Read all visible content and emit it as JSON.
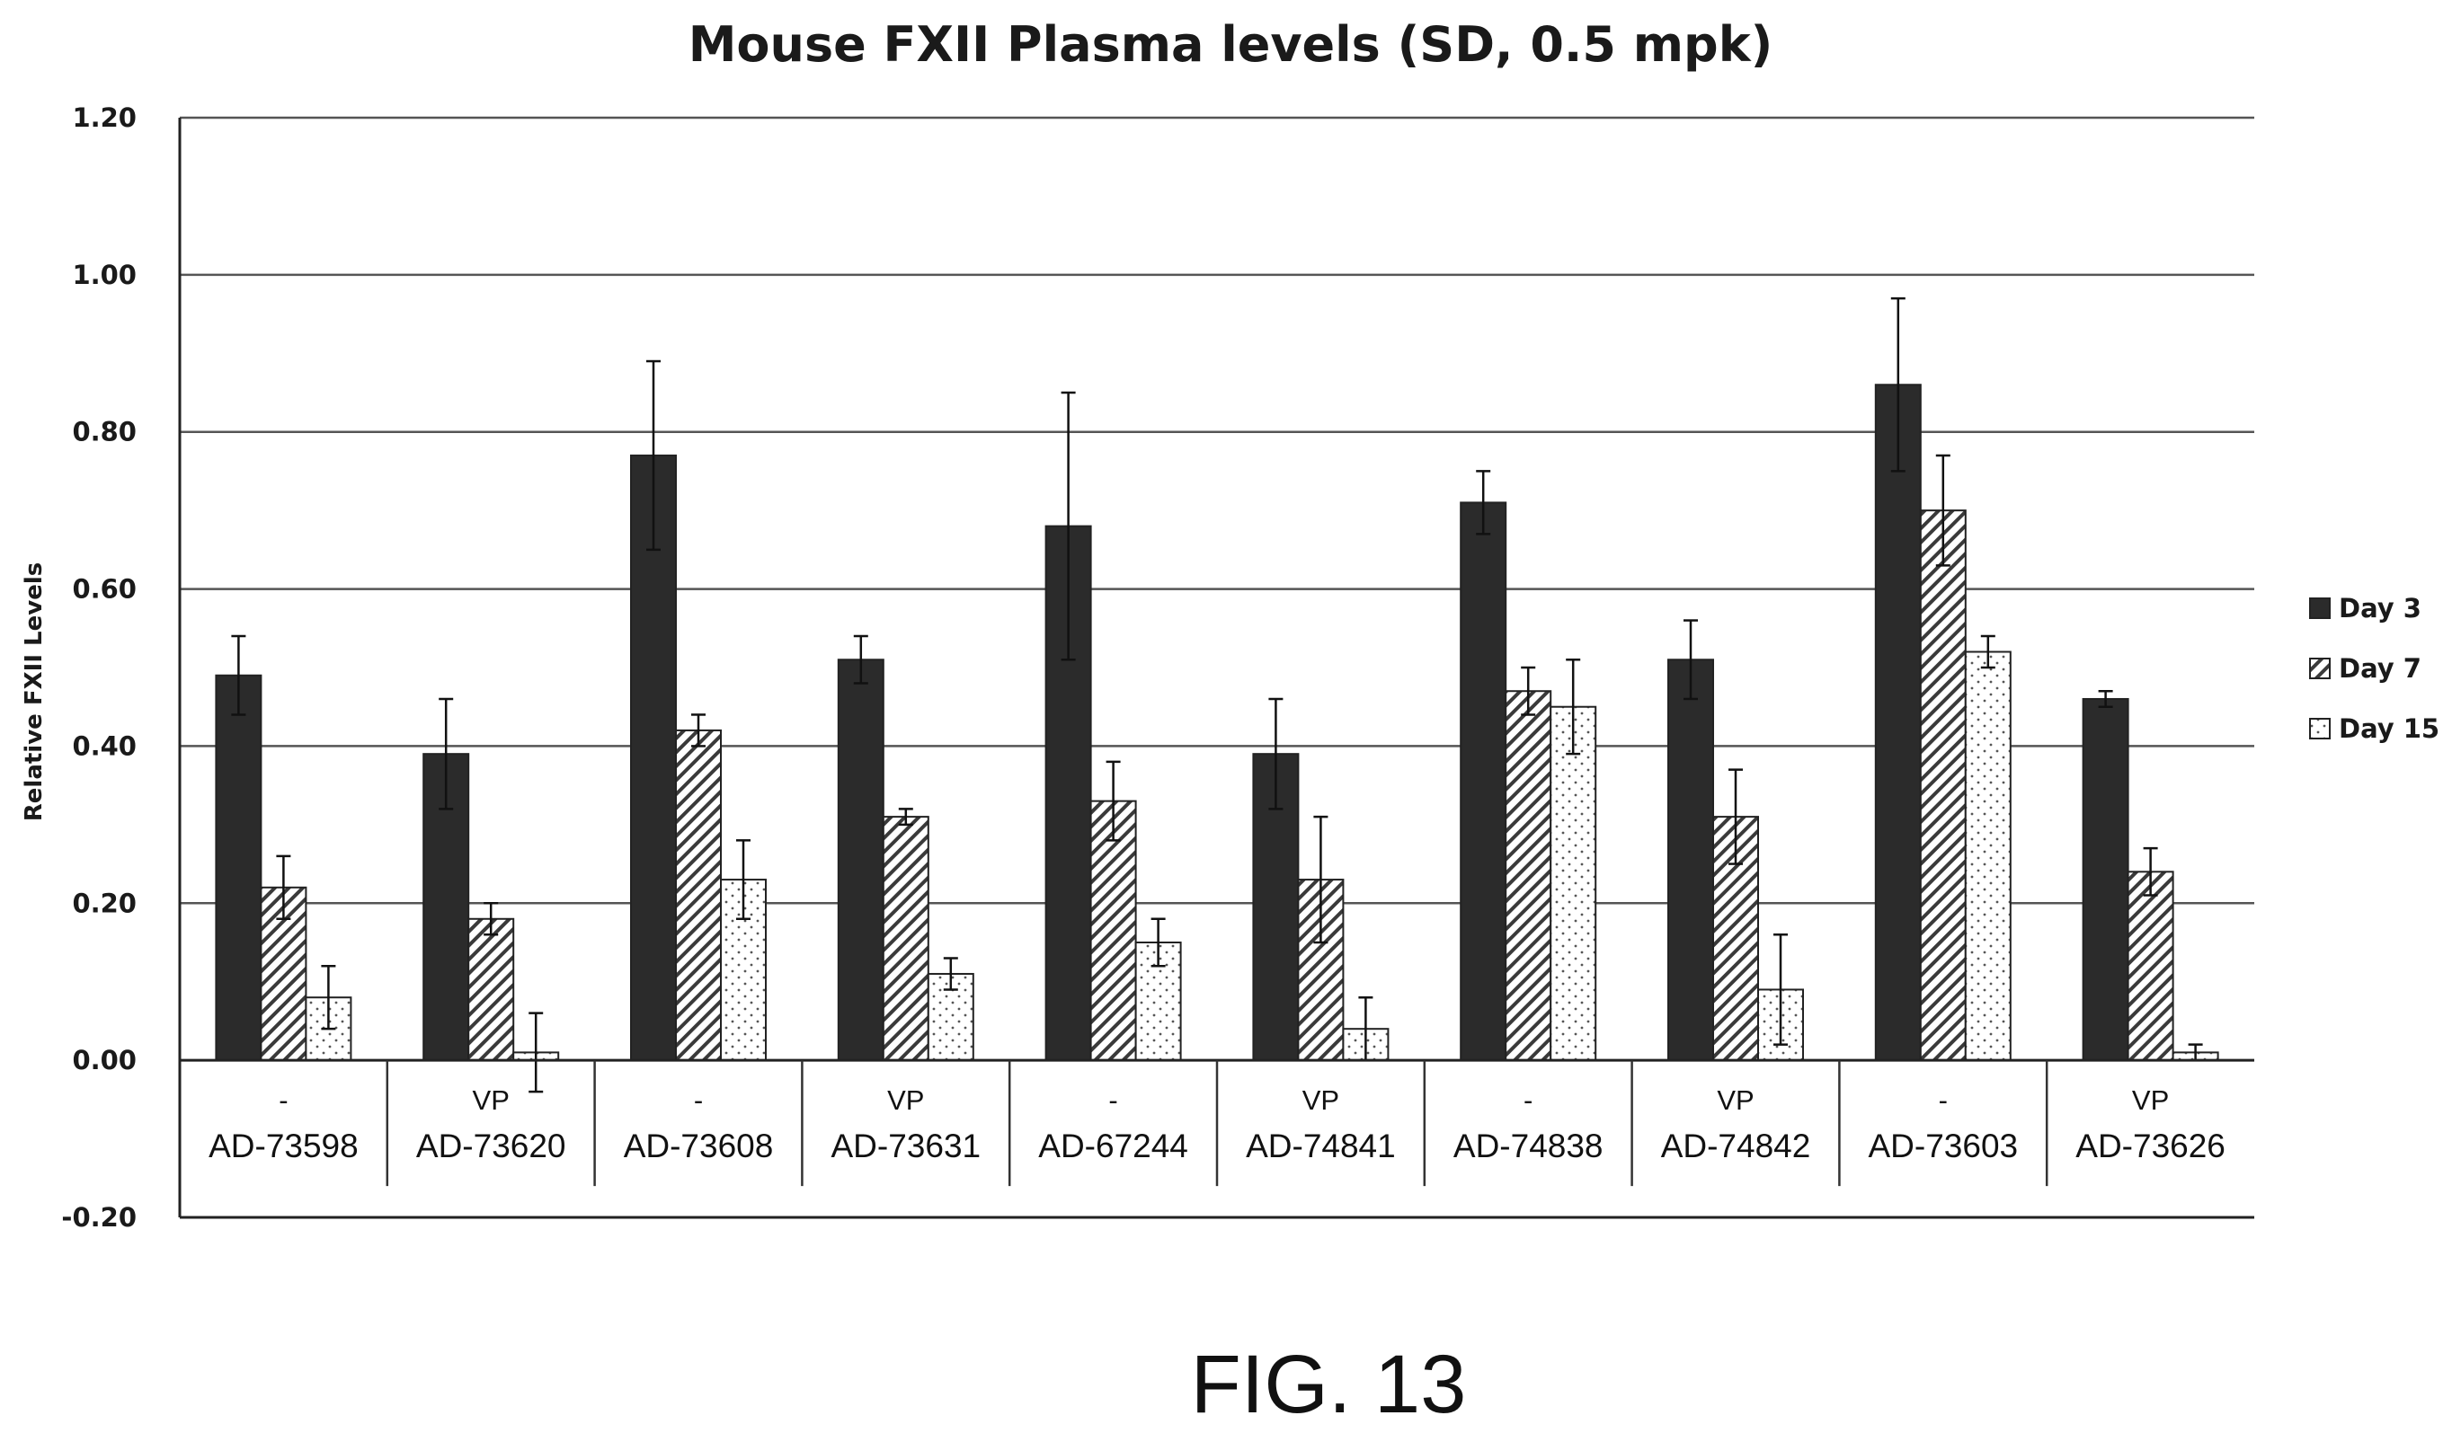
{
  "chart_data": {
    "type": "bar",
    "title": "Mouse FXII Plasma levels (SD, 0.5 mpk)",
    "xlabel": "",
    "ylabel": "Relative FXII Levels",
    "ylim": [
      -0.2,
      1.2
    ],
    "y_ticks": [
      "1.20",
      "1.00",
      "0.80",
      "0.60",
      "0.40",
      "0.20",
      "0.00",
      "-0.20"
    ],
    "y_tick_values": [
      1.2,
      1.0,
      0.8,
      0.6,
      0.4,
      0.2,
      0.0,
      -0.2
    ],
    "grid": true,
    "legend_position": "right",
    "categories": [
      "AD-73598",
      "AD-73620",
      "AD-73608",
      "AD-73631",
      "AD-67244",
      "AD-74841",
      "AD-74838",
      "AD-74842",
      "AD-73603",
      "AD-73626"
    ],
    "category_groups": [
      "-",
      "VP",
      "-",
      "VP",
      "-",
      "VP",
      "-",
      "VP",
      "-",
      "VP"
    ],
    "series": [
      {
        "name": "Day 3",
        "fill": "solid",
        "color": "#2b2b2b",
        "values": [
          0.49,
          0.39,
          0.77,
          0.51,
          0.68,
          0.39,
          0.71,
          0.51,
          0.86,
          0.46
        ],
        "errors": [
          0.05,
          0.07,
          0.12,
          0.03,
          0.17,
          0.07,
          0.04,
          0.05,
          0.11,
          0.01
        ]
      },
      {
        "name": "Day 7",
        "fill": "diagonal-hatch",
        "color": "#555555",
        "values": [
          0.22,
          0.18,
          0.42,
          0.31,
          0.33,
          0.23,
          0.47,
          0.31,
          0.7,
          0.24
        ],
        "errors": [
          0.04,
          0.02,
          0.02,
          0.01,
          0.05,
          0.08,
          0.03,
          0.06,
          0.07,
          0.03
        ]
      },
      {
        "name": "Day 15",
        "fill": "dotted",
        "color": "#888888",
        "values": [
          0.08,
          0.01,
          0.23,
          0.11,
          0.15,
          0.04,
          0.45,
          0.09,
          0.52,
          0.01
        ],
        "errors": [
          0.04,
          0.05,
          0.05,
          0.02,
          0.03,
          0.04,
          0.06,
          0.07,
          0.02,
          0.01
        ]
      }
    ]
  },
  "figure_caption": "FIG. 13"
}
